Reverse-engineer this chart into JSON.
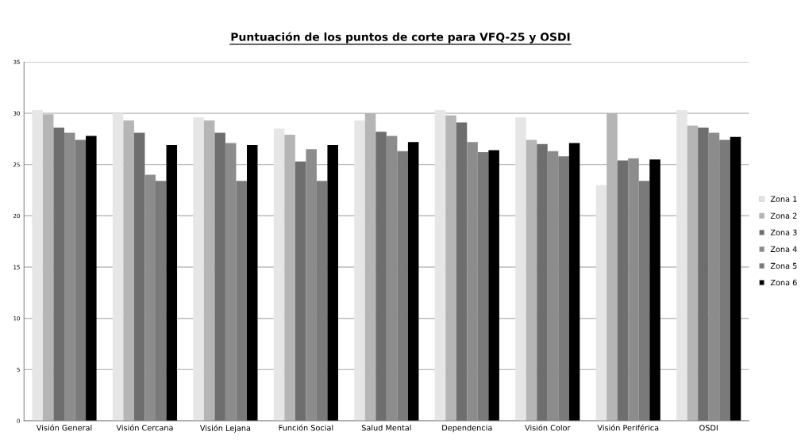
{
  "chart_data": {
    "type": "bar",
    "title": "Puntuación de los puntos de corte para VFQ-25 y OSDI",
    "categories": [
      "Visión General",
      "Visión Cercana",
      "Visión Lejana",
      "Función Social",
      "Salud Mental",
      "Dependencia",
      "Visión Color",
      "Visión Periférica",
      "OSDI"
    ],
    "series": [
      {
        "name": "Zona 1",
        "color": "#e6e6e6",
        "values": [
          30.3,
          30.0,
          29.6,
          28.5,
          29.3,
          30.3,
          29.6,
          23.0,
          30.3
        ]
      },
      {
        "name": "Zona 2",
        "color": "#b5b5b5",
        "values": [
          29.9,
          29.3,
          29.3,
          27.9,
          30.0,
          29.8,
          27.4,
          30.0,
          28.8
        ]
      },
      {
        "name": "Zona 3",
        "color": "#6e6e6e",
        "values": [
          28.6,
          28.1,
          28.1,
          25.3,
          28.2,
          29.1,
          27.0,
          25.4,
          28.6
        ]
      },
      {
        "name": "Zona 4",
        "color": "#8c8c8c",
        "values": [
          28.1,
          24.0,
          27.1,
          26.5,
          27.8,
          27.2,
          26.3,
          25.6,
          28.1
        ]
      },
      {
        "name": "Zona 5",
        "color": "#7a7a7a",
        "values": [
          27.4,
          23.4,
          23.4,
          23.4,
          26.3,
          26.2,
          25.8,
          23.4,
          27.4
        ]
      },
      {
        "name": "Zona 6",
        "color": "#000000",
        "values": [
          27.8,
          26.9,
          26.9,
          26.9,
          27.2,
          26.4,
          27.1,
          25.5,
          27.7
        ]
      }
    ],
    "ylim": [
      0,
      35
    ],
    "yticks": [
      0,
      5,
      10,
      15,
      20,
      25,
      30,
      35
    ],
    "grid": "y",
    "legend": "right"
  }
}
